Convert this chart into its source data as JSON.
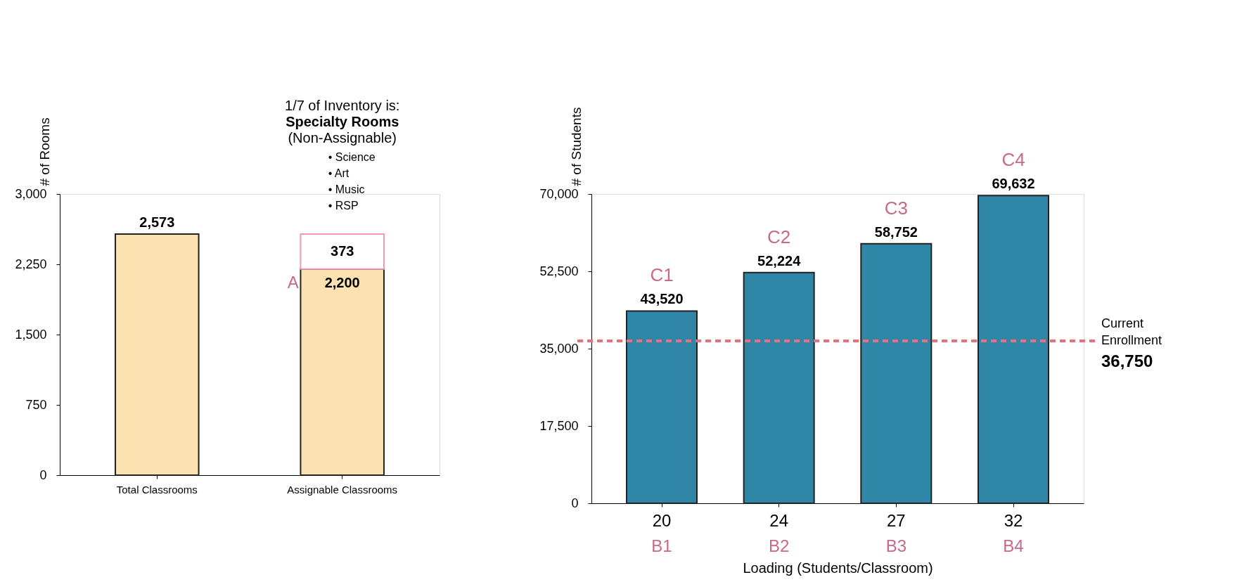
{
  "chart_data": [
    {
      "type": "bar",
      "ylabel": "# of Rooms",
      "categories": [
        "Total Classrooms",
        "Assignable Classrooms"
      ],
      "stacked": true,
      "series": [
        {
          "color": "#fbe2b0",
          "values": [
            2573,
            2200
          ],
          "value_labels": [
            "2,573",
            "2,200"
          ]
        },
        {
          "color": "#ffffff",
          "values": [
            null,
            373
          ],
          "value_labels": [
            null,
            "373"
          ]
        }
      ],
      "ylim": [
        0,
        3000
      ],
      "yticks": [
        0,
        {
          "value": 750,
          "label": "750"
        },
        {
          "value": 1500,
          "label": "1,500"
        },
        {
          "value": 2250,
          "label": "2,250"
        },
        {
          "value": 3000,
          "label": "3,000"
        }
      ],
      "grid": false,
      "annotations": [
        "1/7 of Inventory is:",
        "Specialty Rooms",
        "(Non-Assignable)",
        "• Science",
        "• Art",
        "• Music",
        "• RSP",
        {
          "text": "A",
          "x": "Assignable Classrooms",
          "y": 2200
        }
      ]
    },
    {
      "type": "bar",
      "ylabel": "# of Students",
      "xlabel": "Loading (Students/Classroom)",
      "categories": [
        "20",
        "24",
        "27",
        "32"
      ],
      "series": [
        {
          "color": "#2f86a6",
          "values": [
            43520,
            52224,
            58752,
            69632
          ],
          "value_labels": [
            "43,520",
            "52,224",
            "58,752",
            "69,632"
          ]
        }
      ],
      "ylim": [
        0,
        70000
      ],
      "yticks": [
        0,
        {
          "value": 17500,
          "label": "17,500"
        },
        {
          "value": 35000,
          "label": "35,000"
        },
        {
          "value": 52500,
          "label": "52,500"
        },
        {
          "value": 70000,
          "label": "70,000"
        }
      ],
      "grid": false,
      "ref_lines": [
        {
          "axis": "y",
          "value": 36750,
          "label": "Current Enrollment 36,750",
          "color": "#e8707c",
          "line_style": "dashed"
        }
      ],
      "annotations": [
        {
          "text": "C1",
          "x": "20",
          "y": 43520
        },
        {
          "text": "C2",
          "x": "24",
          "y": 52224
        },
        {
          "text": "C3",
          "x": "27",
          "y": 58752
        },
        {
          "text": "C4",
          "x": "32",
          "y": 69632
        },
        "B1",
        "B2",
        "B3",
        "B4"
      ]
    }
  ]
}
